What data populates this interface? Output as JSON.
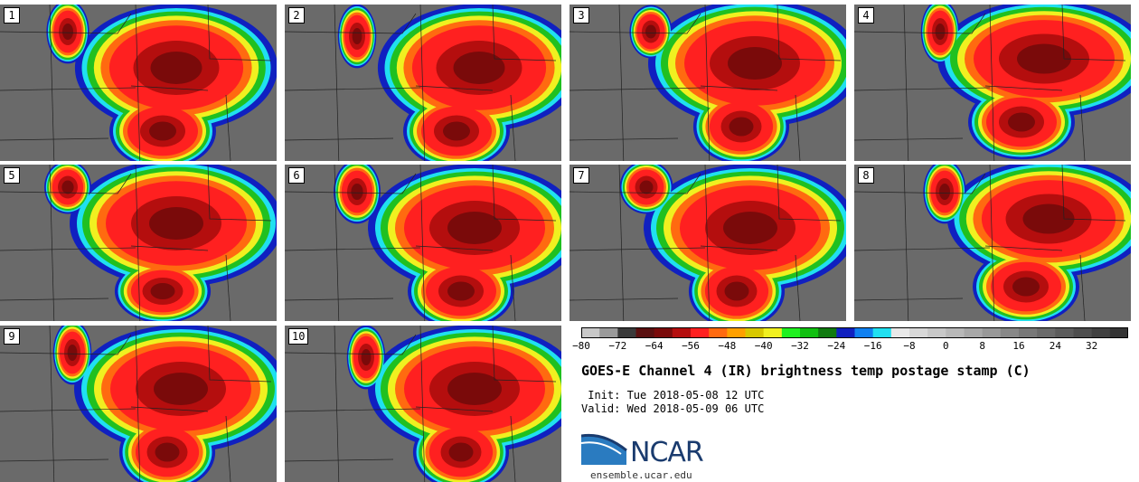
{
  "panels": [
    {
      "label": "1",
      "lobes": [
        [
          195,
          70,
          95,
          60
        ],
        [
          180,
          140,
          50,
          35
        ],
        [
          75,
          30,
          20,
          30
        ]
      ]
    },
    {
      "label": "2",
      "lobes": [
        [
          215,
          70,
          95,
          60
        ],
        [
          190,
          140,
          50,
          35
        ],
        [
          80,
          35,
          18,
          30
        ]
      ]
    },
    {
      "label": "3",
      "lobes": [
        [
          205,
          65,
          100,
          60
        ],
        [
          190,
          135,
          45,
          35
        ],
        [
          90,
          30,
          20,
          25
        ]
      ]
    },
    {
      "label": "4",
      "lobes": [
        [
          210,
          60,
          100,
          55
        ],
        [
          185,
          130,
          50,
          35
        ],
        [
          95,
          30,
          18,
          30
        ]
      ]
    },
    {
      "label": "5",
      "lobes": [
        [
          195,
          65,
          100,
          60
        ],
        [
          180,
          140,
          45,
          30
        ],
        [
          75,
          25,
          22,
          25
        ]
      ]
    },
    {
      "label": "6",
      "lobes": [
        [
          210,
          70,
          100,
          60
        ],
        [
          195,
          140,
          50,
          35
        ],
        [
          80,
          30,
          22,
          30
        ]
      ]
    },
    {
      "label": "7",
      "lobes": [
        [
          200,
          70,
          100,
          60
        ],
        [
          185,
          140,
          45,
          35
        ],
        [
          85,
          25,
          25,
          25
        ]
      ]
    },
    {
      "label": "8",
      "lobes": [
        [
          215,
          60,
          95,
          55
        ],
        [
          190,
          135,
          50,
          35
        ],
        [
          100,
          30,
          20,
          30
        ]
      ]
    },
    {
      "label": "9",
      "lobes": [
        [
          200,
          70,
          100,
          60
        ],
        [
          185,
          140,
          45,
          35
        ],
        [
          80,
          30,
          18,
          30
        ]
      ]
    },
    {
      "label": "10",
      "lobes": [
        [
          210,
          70,
          100,
          60
        ],
        [
          195,
          140,
          45,
          35
        ],
        [
          90,
          35,
          18,
          30
        ]
      ]
    }
  ],
  "colorbar": {
    "colors": [
      "#c8c8c8",
      "#9a9a9a",
      "#3a3a3a",
      "#5a1010",
      "#7a0a0a",
      "#b40e0e",
      "#ff2020",
      "#ff6a10",
      "#ffa000",
      "#d8c800",
      "#f0f020",
      "#20f020",
      "#10c010",
      "#107a10",
      "#1020c0",
      "#1080f0",
      "#20e0f0",
      "#e8e8e8",
      "#d8d8d8",
      "#c8c8c8",
      "#b8b8b8",
      "#a8a8a8",
      "#989898",
      "#888888",
      "#787878",
      "#6a6a6a",
      "#5c5c5c",
      "#4e4e4e",
      "#404040",
      "#343434"
    ],
    "ticks": [
      "−80",
      "−72",
      "−64",
      "−56",
      "−48",
      "−40",
      "−32",
      "−24",
      "−16",
      "−8",
      "0",
      "8",
      "16",
      "24",
      "32"
    ]
  },
  "title": "GOES-E Channel 4 (IR) brightness temp postage stamp (C)",
  "init_text": " Init: Tue 2018-05-08 12 UTC",
  "valid_text": "Valid: Wed 2018-05-09 06 UTC",
  "logo_text": "NCAR",
  "url": "ensemble.ucar.edu",
  "colors": {
    "gray_bg": "#6a6a6a",
    "ncar_blue": "#1a3b6e",
    "ncar_light": "#2a7bc0"
  }
}
